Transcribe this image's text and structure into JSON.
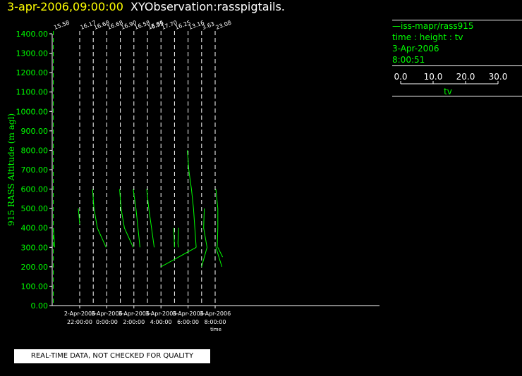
{
  "header": {
    "date": "3-apr-2006,09:00:00",
    "title": "XYObservation:rasspigtails."
  },
  "legend": {
    "series": "—iss-mapr/rass915",
    "variables": "time : height : tv",
    "date": "3-Apr-2006",
    "time": "8:00:51",
    "scale_ticks": [
      "0.0",
      "10.0",
      "20.0",
      "30.0"
    ],
    "scale_label": "tv"
  },
  "disclaimer": "REAL-TIME DATA, NOT CHECKED FOR QUALITY",
  "colors": {
    "data": "#00ff00",
    "axis": "#ffffff",
    "header_date": "#ffff00",
    "background": "#000000"
  },
  "chart_data": {
    "type": "line",
    "title": "XYObservation:rasspigtails.",
    "xlabel": "time",
    "ylabel": "915 RASS Altitude (m agl)",
    "xlim": [
      20.05,
      32.2
    ],
    "ylim": [
      0,
      1400
    ],
    "yticks": [
      0,
      100,
      200,
      300,
      400,
      500,
      600,
      700,
      800,
      900,
      1000,
      1100,
      1200,
      1300,
      1400
    ],
    "ytick_labels": [
      "0.00",
      "100.00",
      "200.00",
      "300.00",
      "400.00",
      "500.00",
      "600.00",
      "700.00",
      "800.00",
      "900.00",
      "1000.00",
      "1100.00",
      "1200.00",
      "1300.00",
      "1400.00"
    ],
    "xticks": [
      {
        "t": 22,
        "date": "2-Apr-2006",
        "time": "22:00:00"
      },
      {
        "t": 24,
        "date": "3-Apr-2006",
        "time": "0:00:00"
      },
      {
        "t": 26,
        "date": "3-Apr-2006",
        "time": "2:00:00"
      },
      {
        "t": 28,
        "date": "3-Apr-2006",
        "time": "4:00:00"
      },
      {
        "t": 30,
        "date": "3-Apr-2006",
        "time": "6:00:00"
      },
      {
        "t": 32,
        "date": "3-Apr-2006",
        "time": "8:00:00"
      }
    ],
    "profiles": [
      {
        "t": 20.05,
        "label": "15.58",
        "color": "#00ff00"
      },
      {
        "t": 22.0,
        "label": "16.17",
        "color": "#ffffff"
      },
      {
        "t": 24.0,
        "label": "16.68",
        "color": "#ffffff"
      },
      {
        "t": 26.0,
        "label": "16.58",
        "color": "#ffffff"
      },
      {
        "t": 28.0,
        "label": "17.70",
        "color": "#ffffff"
      },
      {
        "t": 30.0,
        "label": "13.16",
        "color": "#ffffff"
      },
      {
        "t": 32.0,
        "label": "23.08",
        "color": "#ffffff"
      },
      {
        "t": 23.0,
        "label": "16.68",
        "color": "#ffffff"
      },
      {
        "t": 25.0,
        "label": "16.90",
        "color": "#ffffff"
      },
      {
        "t": 27.0,
        "label": "15.55",
        "color": "#ffffff"
      },
      {
        "t": 29.0,
        "label": "16.25",
        "color": "#ffffff"
      },
      {
        "t": 31.0,
        "label": "3.63",
        "color": "#ffffff"
      }
    ],
    "profile_labels_extra": [
      {
        "t": 27.0,
        "label": "-6.99"
      }
    ],
    "series": [
      {
        "points": [
          [
            20.05,
            400
          ],
          [
            20.15,
            300
          ]
        ]
      },
      {
        "points": [
          [
            21.9,
            500
          ],
          [
            22.0,
            420
          ]
        ]
      },
      {
        "points": [
          [
            22.95,
            600
          ],
          [
            23.05,
            500
          ],
          [
            23.3,
            400
          ],
          [
            23.95,
            300
          ]
        ]
      },
      {
        "points": [
          [
            24.95,
            600
          ],
          [
            25.05,
            500
          ],
          [
            25.3,
            400
          ],
          [
            25.95,
            300
          ]
        ]
      },
      {
        "points": [
          [
            25.95,
            600
          ],
          [
            26.15,
            500
          ],
          [
            26.3,
            400
          ],
          [
            26.45,
            300
          ]
        ]
      },
      {
        "points": [
          [
            26.95,
            600
          ],
          [
            27.1,
            500
          ],
          [
            27.3,
            400
          ],
          [
            27.5,
            300
          ]
        ]
      },
      {
        "points": [
          [
            28.95,
            400
          ],
          [
            29.0,
            300
          ]
        ]
      },
      {
        "points": [
          [
            29.95,
            800
          ],
          [
            30.05,
            700
          ],
          [
            30.25,
            600
          ],
          [
            30.4,
            500
          ],
          [
            30.5,
            400
          ],
          [
            30.6,
            300
          ]
        ]
      },
      {
        "points": [
          [
            31.0,
            200
          ],
          [
            31.4,
            300
          ],
          [
            31.15,
            400
          ],
          [
            31.2,
            500
          ]
        ]
      },
      {
        "points": [
          [
            32.05,
            600
          ],
          [
            32.2,
            500
          ],
          [
            32.2,
            400
          ],
          [
            32.15,
            300
          ]
        ]
      },
      {
        "points": [
          [
            28.0,
            200
          ],
          [
            30.6,
            300
          ]
        ]
      },
      {
        "points": [
          [
            29.3,
            400
          ],
          [
            29.25,
            320
          ],
          [
            29.3,
            300
          ]
        ]
      },
      {
        "points": [
          [
            32.05,
            300
          ],
          [
            32.5,
            200
          ]
        ]
      },
      {
        "points": [
          [
            32.2,
            300
          ],
          [
            32.55,
            250
          ]
        ]
      }
    ]
  }
}
